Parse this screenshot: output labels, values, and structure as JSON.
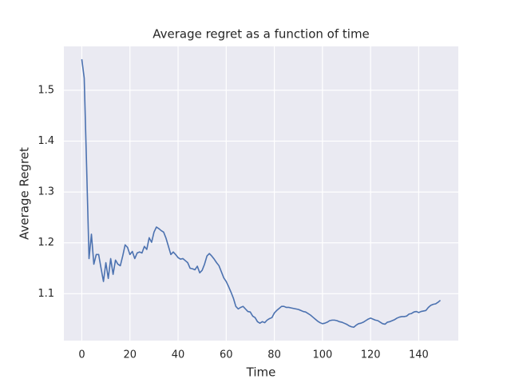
{
  "chart_data": {
    "type": "line",
    "title": "Average regret as a function of time",
    "x_label": "Time",
    "y_label": "Average Regret",
    "x": [
      0,
      1,
      2,
      3,
      4,
      5,
      6,
      7,
      8,
      9,
      10,
      11,
      12,
      13,
      14,
      15,
      16,
      17,
      18,
      19,
      20,
      21,
      22,
      23,
      24,
      25,
      26,
      27,
      28,
      29,
      30,
      31,
      32,
      33,
      34,
      35,
      36,
      37,
      38,
      39,
      40,
      41,
      42,
      43,
      44,
      45,
      46,
      47,
      48,
      49,
      50,
      51,
      52,
      53,
      54,
      55,
      56,
      57,
      58,
      59,
      60,
      61,
      62,
      63,
      64,
      65,
      66,
      67,
      68,
      69,
      70,
      71,
      72,
      73,
      74,
      75,
      76,
      77,
      78,
      79,
      80,
      81,
      82,
      83,
      84,
      85,
      86,
      87,
      88,
      89,
      90,
      91,
      92,
      93,
      94,
      95,
      96,
      97,
      98,
      99,
      100,
      101,
      102,
      103,
      104,
      105,
      106,
      107,
      108,
      109,
      110,
      111,
      112,
      113,
      114,
      115,
      116,
      117,
      118,
      119,
      120,
      121,
      122,
      123,
      124,
      125,
      126,
      127,
      128,
      129,
      130,
      131,
      132,
      133,
      134,
      135,
      136,
      137,
      138,
      139,
      140,
      141,
      142,
      143,
      144,
      145,
      146,
      147,
      148,
      149
    ],
    "series": [
      {
        "name": "Average Regret",
        "color": "#4c72b0",
        "values": [
          1.561,
          1.524,
          1.35,
          1.169,
          1.217,
          1.158,
          1.177,
          1.177,
          1.15,
          1.124,
          1.161,
          1.13,
          1.169,
          1.138,
          1.166,
          1.158,
          1.155,
          1.174,
          1.196,
          1.191,
          1.177,
          1.183,
          1.169,
          1.18,
          1.182,
          1.18,
          1.193,
          1.187,
          1.21,
          1.201,
          1.221,
          1.231,
          1.228,
          1.224,
          1.221,
          1.209,
          1.193,
          1.177,
          1.182,
          1.177,
          1.171,
          1.168,
          1.169,
          1.165,
          1.161,
          1.15,
          1.149,
          1.147,
          1.154,
          1.141,
          1.146,
          1.158,
          1.174,
          1.179,
          1.174,
          1.168,
          1.161,
          1.155,
          1.143,
          1.131,
          1.124,
          1.114,
          1.103,
          1.091,
          1.075,
          1.07,
          1.073,
          1.075,
          1.07,
          1.065,
          1.064,
          1.056,
          1.053,
          1.045,
          1.042,
          1.045,
          1.043,
          1.048,
          1.051,
          1.053,
          1.062,
          1.067,
          1.071,
          1.075,
          1.075,
          1.073,
          1.073,
          1.072,
          1.071,
          1.07,
          1.069,
          1.067,
          1.065,
          1.064,
          1.061,
          1.058,
          1.054,
          1.05,
          1.046,
          1.043,
          1.041,
          1.042,
          1.044,
          1.047,
          1.048,
          1.048,
          1.047,
          1.045,
          1.044,
          1.042,
          1.04,
          1.037,
          1.035,
          1.034,
          1.038,
          1.041,
          1.042,
          1.044,
          1.047,
          1.05,
          1.052,
          1.05,
          1.048,
          1.047,
          1.044,
          1.041,
          1.04,
          1.044,
          1.045,
          1.047,
          1.049,
          1.052,
          1.054,
          1.055,
          1.055,
          1.056,
          1.06,
          1.061,
          1.064,
          1.065,
          1.063,
          1.065,
          1.066,
          1.067,
          1.073,
          1.077,
          1.079,
          1.08,
          1.083,
          1.087
        ]
      }
    ],
    "xlim": [
      -7.45,
      156.45
    ],
    "ylim": [
      1.0077,
      1.5863
    ],
    "xticks": [
      0,
      20,
      40,
      60,
      80,
      100,
      120,
      140
    ],
    "yticks": [
      1.1,
      1.2,
      1.3,
      1.4,
      1.5
    ],
    "grid": true,
    "background": "#eaeaf2"
  }
}
